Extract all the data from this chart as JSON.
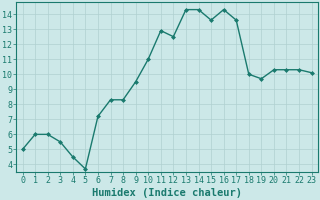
{
  "x": [
    0,
    1,
    2,
    3,
    4,
    5,
    6,
    7,
    8,
    9,
    10,
    11,
    12,
    13,
    14,
    15,
    16,
    17,
    18,
    19,
    20,
    21,
    22,
    23
  ],
  "y": [
    5,
    6,
    6,
    5.5,
    4.5,
    3.7,
    7.2,
    8.3,
    8.3,
    9.5,
    11.0,
    12.9,
    12.5,
    14.3,
    14.3,
    13.6,
    14.3,
    13.6,
    10.0,
    9.7,
    10.3,
    10.3,
    10.3,
    10.1
  ],
  "line_color": "#1a7a6e",
  "marker": "D",
  "marker_size": 2.0,
  "bg_color": "#cce8e8",
  "grid_color": "#b0d0d0",
  "xlabel": "Humidex (Indice chaleur)",
  "xlim": [
    -0.5,
    23.5
  ],
  "ylim": [
    3.5,
    14.8
  ],
  "yticks": [
    4,
    5,
    6,
    7,
    8,
    9,
    10,
    11,
    12,
    13,
    14
  ],
  "xticks": [
    0,
    1,
    2,
    3,
    4,
    5,
    6,
    7,
    8,
    9,
    10,
    11,
    12,
    13,
    14,
    15,
    16,
    17,
    18,
    19,
    20,
    21,
    22,
    23
  ],
  "xlabel_fontsize": 7.5,
  "tick_fontsize": 6.0,
  "axis_color": "#1a7a6e",
  "line_width": 1.0
}
